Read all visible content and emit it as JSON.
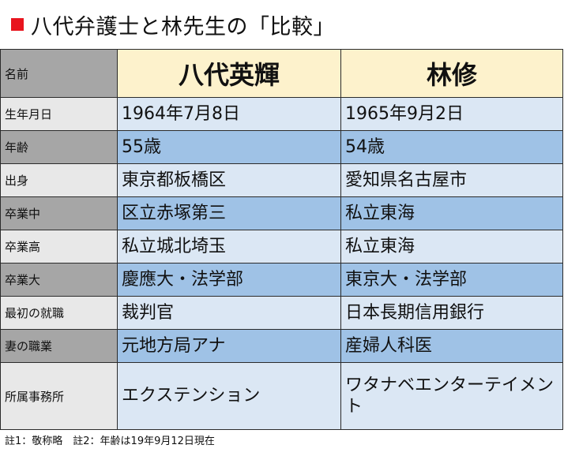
{
  "header": {
    "title": "八代弁護士と林先生の「比較」",
    "accent_color": "#e8141e"
  },
  "table": {
    "header_row": {
      "label": "名前",
      "col_a": "八代英輝",
      "col_b": "林修"
    },
    "rows": [
      {
        "label": "生年月日",
        "a": "1964年7月8日",
        "b": "1965年9月2日"
      },
      {
        "label": "年齢",
        "a": "55歳",
        "b": "54歳"
      },
      {
        "label": "出身",
        "a": "東京都板橋区",
        "b": "愛知県名古屋市"
      },
      {
        "label": "卒業中",
        "a": "区立赤塚第三",
        "b": "私立東海"
      },
      {
        "label": "卒業高",
        "a": "私立城北埼玉",
        "b": "私立東海"
      },
      {
        "label": "卒業大",
        "a": "慶應大・法学部",
        "b": "東京大・法学部"
      },
      {
        "label": "最初の就職",
        "a": "裁判官",
        "b": "日本長期信用銀行"
      },
      {
        "label": "妻の職業",
        "a": "元地方局アナ",
        "b": "産婦人科医"
      },
      {
        "label": "所属事務所",
        "a": "エクステンション",
        "b": "ワタナベエンターテイメント"
      }
    ],
    "colors": {
      "label_light": "#e8e8e8",
      "label_dark": "#a6a6a6",
      "value_light": "#dbe7f4",
      "value_dark": "#9fc2e6",
      "header_fill": "#fdf2cc"
    }
  },
  "footer": {
    "note": "註1：敬称略　註2：年齢は19年9月12日現在"
  }
}
